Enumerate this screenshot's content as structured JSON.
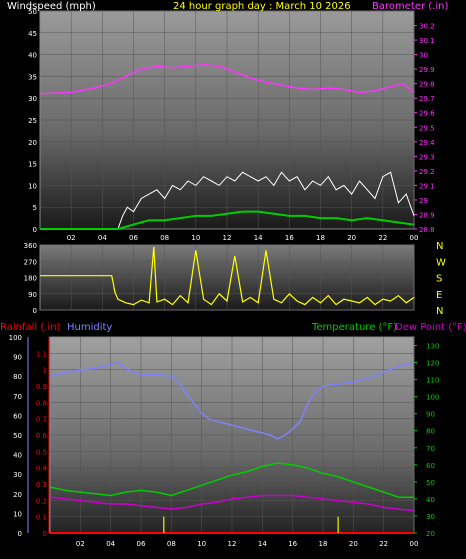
{
  "colors": {
    "wind": "#ffffff",
    "windAvg": "#00cc00",
    "barometer": "#ff33ff",
    "direction": "#ffff00",
    "rainfall": "#ff0000",
    "humidity": "#8080ff",
    "temperature": "#00cc00",
    "dewpoint": "#cc00cc",
    "title": "#ffff00",
    "axisText": "#ffffff"
  },
  "chart_data": [
    {
      "type": "line",
      "title": "24 hour graph day : March 10 2026",
      "left_label": "Windspeed (mph)",
      "right_label": "Barometer (.in)",
      "x_tick_labels": [
        "02",
        "04",
        "06",
        "08",
        "10",
        "12",
        "14",
        "16",
        "18",
        "20",
        "22",
        "00"
      ],
      "x_range": [
        0,
        24
      ],
      "left_ylim": [
        0,
        50
      ],
      "left_ticks": [
        "0",
        "5",
        "10",
        "15",
        "20",
        "25",
        "30",
        "35",
        "40",
        "45",
        "50"
      ],
      "right_ylim": [
        28.8,
        30.3
      ],
      "right_ticks": [
        "28.8",
        "28.9",
        "29",
        "29.1",
        "29.2",
        "29.3",
        "29.4",
        "29.5",
        "29.6",
        "29.7",
        "29.8",
        "29.9",
        "30",
        "30.1",
        "30.2"
      ],
      "series": [
        {
          "key": "barometer",
          "axis": "right",
          "x": [
            0,
            2,
            3.5,
            4.5,
            5.5,
            6.5,
            7.5,
            8.5,
            9.5,
            10.5,
            11.5,
            12.5,
            13.5,
            14.5,
            15.5,
            16.5,
            17.5,
            18.5,
            19.5,
            20.5,
            21.5,
            22.5,
            23.3,
            24
          ],
          "y": [
            29.73,
            29.74,
            29.77,
            29.8,
            29.85,
            29.9,
            29.92,
            29.91,
            29.92,
            29.93,
            29.92,
            29.88,
            29.84,
            29.81,
            29.79,
            29.77,
            29.76,
            29.77,
            29.76,
            29.74,
            29.75,
            29.78,
            29.8,
            29.74
          ]
        },
        {
          "key": "wind_gust",
          "x": [
            0,
            5,
            5.3,
            5.6,
            6,
            6.5,
            7,
            7.5,
            8,
            8.5,
            9,
            9.5,
            10,
            10.5,
            11,
            11.5,
            12,
            12.5,
            13,
            13.5,
            14,
            14.5,
            15,
            15.5,
            16,
            16.5,
            17,
            17.5,
            18,
            18.5,
            19,
            19.5,
            20,
            20.5,
            21,
            21.5,
            22,
            22.5,
            23,
            23.5,
            24
          ],
          "y": [
            0,
            0,
            3,
            5,
            4,
            7,
            8,
            9,
            7,
            10,
            9,
            11,
            10,
            12,
            11,
            10,
            12,
            11,
            13,
            12,
            11,
            12,
            10,
            13,
            11,
            12,
            9,
            11,
            10,
            12,
            9,
            10,
            8,
            11,
            9,
            7,
            12,
            13,
            6,
            8,
            3
          ]
        },
        {
          "key": "wind_avg",
          "x": [
            0,
            5,
            6,
            7,
            8,
            9,
            10,
            11,
            12,
            13,
            14,
            15,
            16,
            17,
            18,
            19,
            20,
            21,
            22,
            23,
            24
          ],
          "y": [
            0,
            0,
            1,
            2,
            2,
            2.5,
            3,
            3,
            3.5,
            4,
            4,
            3.5,
            3,
            3,
            2.5,
            2.5,
            2,
            2.5,
            2,
            1.5,
            1
          ]
        }
      ]
    },
    {
      "type": "line",
      "x_range": [
        0,
        24
      ],
      "ylim": [
        0,
        360
      ],
      "left_ticks": [
        "0",
        "90",
        "180",
        "270",
        "360"
      ],
      "compass_labels": [
        "N",
        "W",
        "S",
        "E",
        "N"
      ],
      "series": [
        {
          "key": "wind_direction",
          "x": [
            0,
            4.6,
            4.7,
            4.8,
            5,
            5.5,
            6,
            6.5,
            7,
            7.3,
            7.5,
            8,
            8.5,
            9,
            9.5,
            10,
            10.5,
            11,
            11.5,
            12,
            12.5,
            13,
            13.5,
            14,
            14.5,
            15,
            15.5,
            16,
            16.5,
            17,
            17.5,
            18,
            18.5,
            19,
            19.5,
            20,
            20.5,
            21,
            21.5,
            22,
            22.5,
            23,
            23.5,
            24
          ],
          "y": [
            190,
            190,
            150,
            100,
            60,
            40,
            30,
            55,
            40,
            350,
            45,
            60,
            30,
            80,
            40,
            330,
            60,
            30,
            90,
            50,
            300,
            45,
            70,
            40,
            330,
            60,
            40,
            90,
            50,
            30,
            70,
            40,
            80,
            30,
            60,
            50,
            40,
            70,
            30,
            60,
            50,
            80,
            40,
            70
          ]
        }
      ]
    },
    {
      "type": "line",
      "labels": {
        "rainfall": "Rainfall (.in)",
        "humidity": "Humidity",
        "temperature": "Temperature (°F)",
        "dewpoint": "Dew Point (°F)"
      },
      "x_tick_labels": [
        "02",
        "04",
        "06",
        "08",
        "10",
        "12",
        "14",
        "16",
        "18",
        "20",
        "22",
        "00"
      ],
      "x_range": [
        0,
        24
      ],
      "humidity_ylim": [
        0,
        100
      ],
      "humidity_ticks": [
        "0",
        "10",
        "20",
        "30",
        "40",
        "50",
        "60",
        "70",
        "80",
        "90",
        "100"
      ],
      "rain_ylim": [
        0,
        1.2
      ],
      "rain_ticks": [
        "0",
        "0.1",
        "0.2",
        "0.3",
        "0.4",
        "0.5",
        "0.6",
        "0.7",
        "0.8",
        "0.9",
        "1",
        "1.1"
      ],
      "temp_ylim": [
        20,
        135
      ],
      "temp_ticks": [
        "20",
        "30",
        "40",
        "50",
        "60",
        "70",
        "80",
        "90",
        "100",
        "110",
        "120",
        "130"
      ],
      "series": [
        {
          "key": "humidity",
          "axis": "humidity",
          "x": [
            0,
            1,
            2,
            3,
            4,
            4.5,
            5,
            5.5,
            6,
            7,
            8,
            8.5,
            9,
            9.5,
            10,
            10.5,
            11,
            11.5,
            12,
            12.5,
            13,
            13.5,
            14,
            14.5,
            15,
            15.5,
            16,
            16.5,
            17,
            17.5,
            18,
            19,
            20,
            21,
            22,
            23,
            24
          ],
          "y": [
            80,
            82,
            83,
            84,
            86,
            87,
            84,
            82,
            81,
            81,
            80,
            77,
            71,
            66,
            61,
            58,
            57,
            56,
            55,
            54,
            53,
            52,
            51,
            50,
            48,
            50,
            53,
            57,
            66,
            72,
            75,
            76,
            77,
            79,
            82,
            85,
            87
          ]
        },
        {
          "key": "temperature",
          "axis": "temp",
          "x": [
            0,
            1,
            2,
            3,
            4,
            5,
            6,
            7,
            8,
            9,
            10,
            11,
            12,
            13,
            14,
            15,
            16,
            17,
            18,
            19,
            20,
            21,
            22,
            23,
            24
          ],
          "y": [
            47,
            45,
            44,
            43,
            42,
            44,
            45,
            44,
            42,
            45,
            48,
            51,
            54,
            56,
            59,
            61,
            60,
            58,
            55,
            53,
            50,
            47,
            44,
            41,
            41
          ]
        },
        {
          "key": "dewpoint",
          "axis": "temp",
          "x": [
            0,
            1,
            2,
            3,
            4,
            5,
            6,
            7,
            8,
            9,
            10,
            11,
            12,
            13,
            14,
            15,
            16,
            17,
            18,
            19,
            20,
            21,
            22,
            23,
            24
          ],
          "y": [
            41,
            40,
            39,
            38,
            37,
            37,
            36,
            35,
            34,
            35,
            37,
            38,
            40,
            41,
            42,
            42,
            42,
            41,
            40,
            39,
            38,
            37,
            35,
            34,
            33
          ]
        },
        {
          "key": "rainfall",
          "axis": "rain",
          "x": [
            0,
            24
          ],
          "y": [
            0,
            0
          ]
        },
        {
          "key": "rain_bars",
          "axis": "rain",
          "x": [
            7.5,
            19
          ],
          "y": [
            0.1,
            0.1
          ]
        }
      ]
    }
  ]
}
